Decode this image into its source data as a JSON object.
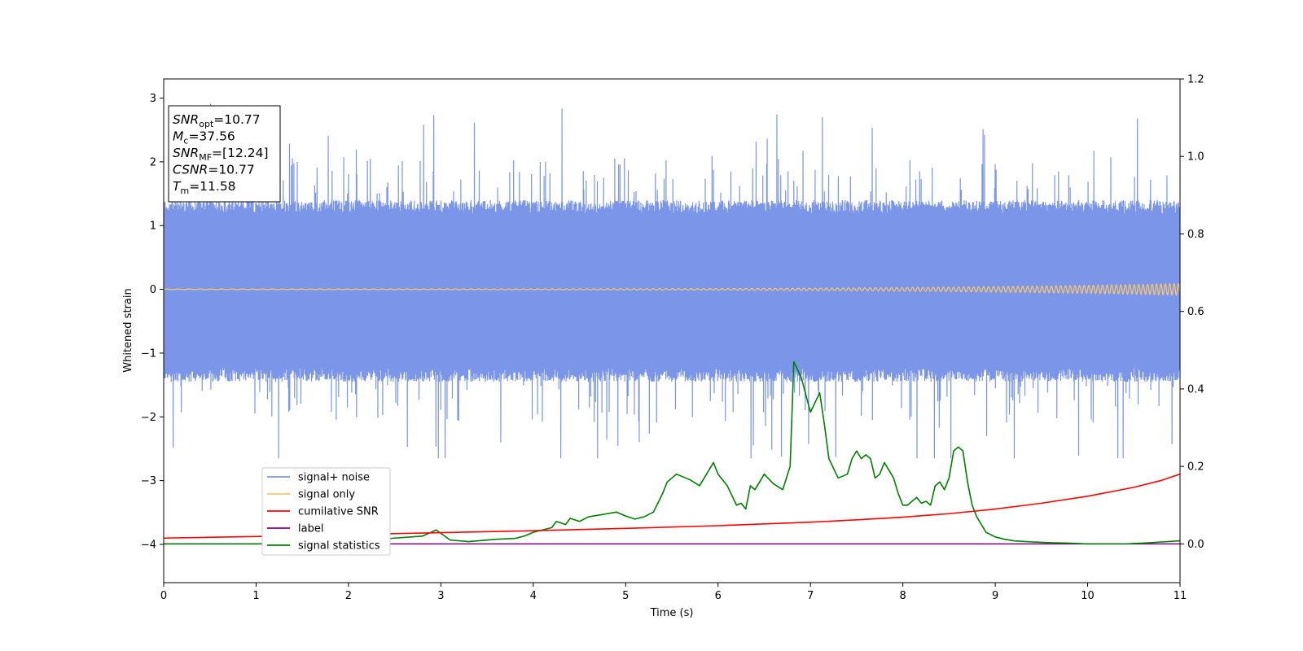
{
  "chart_data": {
    "type": "line",
    "title": "",
    "xlabel": "Time (s)",
    "ylabel": "Whitened strain",
    "xlim": [
      0,
      11
    ],
    "ylim": [
      -4.6,
      3.3
    ],
    "y2lim": [
      -0.1,
      1.2
    ],
    "grid": false,
    "legend_position": "lower-left",
    "x_ticks": [
      0,
      1,
      2,
      3,
      4,
      5,
      6,
      7,
      8,
      9,
      10,
      11
    ],
    "y_ticks": [
      -4,
      -3,
      -2,
      -1,
      0,
      1,
      2,
      3
    ],
    "y2_ticks": [
      "0.0",
      "0.2",
      "0.4",
      "0.6",
      "0.8",
      "1.0",
      "1.2"
    ],
    "annotation": [
      {
        "italic": "SNR",
        "sub": "opt",
        "value": "=10.77"
      },
      {
        "italic": "M",
        "sub": "c",
        "value": "=37.56"
      },
      {
        "italic": "SNR",
        "sub": "MF",
        "value": "=[12.24]"
      },
      {
        "italic": "CSNR",
        "sub": "",
        "value": "=10.77"
      },
      {
        "italic": "T",
        "sub": "m",
        "value": "=11.58"
      }
    ],
    "series": [
      {
        "name": "signal+ noise",
        "color": "#7b96e8",
        "axis": "left",
        "kind": "noise",
        "envelope_hi": 1.4,
        "envelope_lo": -1.45,
        "peak_max": 2.95,
        "peak_min": -2.65
      },
      {
        "name": "signal only",
        "color": "#f7c46f",
        "axis": "left",
        "kind": "chirp",
        "amplitude_start": 0.005,
        "amplitude_end": 0.09
      },
      {
        "name": "cumilative SNR",
        "color": "#ff0000",
        "axis": "right",
        "x": [
          0,
          1,
          2,
          3,
          4,
          5,
          6,
          7,
          7.5,
          8,
          8.5,
          9,
          9.5,
          10,
          10.5,
          10.8,
          11
        ],
        "values": [
          0.015,
          0.019,
          0.024,
          0.029,
          0.034,
          0.04,
          0.047,
          0.056,
          0.062,
          0.069,
          0.078,
          0.09,
          0.105,
          0.123,
          0.146,
          0.164,
          0.18
        ]
      },
      {
        "name": "label",
        "color": "#800080",
        "axis": "right",
        "x": [
          0,
          11
        ],
        "values": [
          0,
          0
        ]
      },
      {
        "name": "signal statistics",
        "color": "#008000",
        "axis": "right",
        "x": [
          0,
          1,
          2,
          2.5,
          2.8,
          2.95,
          3.1,
          3.3,
          3.6,
          3.8,
          3.9,
          4.0,
          4.1,
          4.2,
          4.25,
          4.35,
          4.4,
          4.5,
          4.6,
          4.7,
          4.8,
          4.9,
          5.0,
          5.1,
          5.2,
          5.3,
          5.4,
          5.45,
          5.55,
          5.65,
          5.7,
          5.8,
          5.9,
          5.95,
          6.0,
          6.1,
          6.2,
          6.25,
          6.3,
          6.35,
          6.4,
          6.5,
          6.6,
          6.7,
          6.78,
          6.82,
          6.9,
          7.0,
          7.1,
          7.15,
          7.2,
          7.3,
          7.4,
          7.45,
          7.5,
          7.55,
          7.6,
          7.65,
          7.7,
          7.75,
          7.8,
          7.85,
          7.9,
          7.95,
          8.0,
          8.05,
          8.1,
          8.15,
          8.2,
          8.25,
          8.3,
          8.35,
          8.4,
          8.45,
          8.5,
          8.55,
          8.6,
          8.65,
          8.7,
          8.75,
          8.8,
          8.9,
          9.0,
          9.1,
          9.2,
          9.4,
          9.6,
          9.8,
          10.0,
          10.2,
          10.4,
          10.6,
          10.8,
          11.0
        ],
        "values": [
          0.0,
          0.0,
          0.004,
          0.015,
          0.02,
          0.036,
          0.01,
          0.006,
          0.012,
          0.014,
          0.02,
          0.03,
          0.036,
          0.042,
          0.058,
          0.05,
          0.066,
          0.058,
          0.07,
          0.074,
          0.078,
          0.082,
          0.072,
          0.064,
          0.07,
          0.082,
          0.13,
          0.16,
          0.18,
          0.17,
          0.165,
          0.15,
          0.19,
          0.21,
          0.18,
          0.15,
          0.1,
          0.105,
          0.09,
          0.15,
          0.14,
          0.18,
          0.155,
          0.14,
          0.2,
          0.47,
          0.43,
          0.34,
          0.39,
          0.31,
          0.22,
          0.17,
          0.18,
          0.22,
          0.24,
          0.22,
          0.23,
          0.22,
          0.17,
          0.18,
          0.21,
          0.19,
          0.17,
          0.13,
          0.1,
          0.1,
          0.11,
          0.12,
          0.105,
          0.11,
          0.1,
          0.15,
          0.16,
          0.14,
          0.17,
          0.24,
          0.25,
          0.24,
          0.16,
          0.1,
          0.07,
          0.03,
          0.018,
          0.012,
          0.008,
          0.005,
          0.003,
          0.002,
          0.0,
          0.0,
          0.0,
          0.002,
          0.005,
          0.008
        ]
      }
    ]
  }
}
